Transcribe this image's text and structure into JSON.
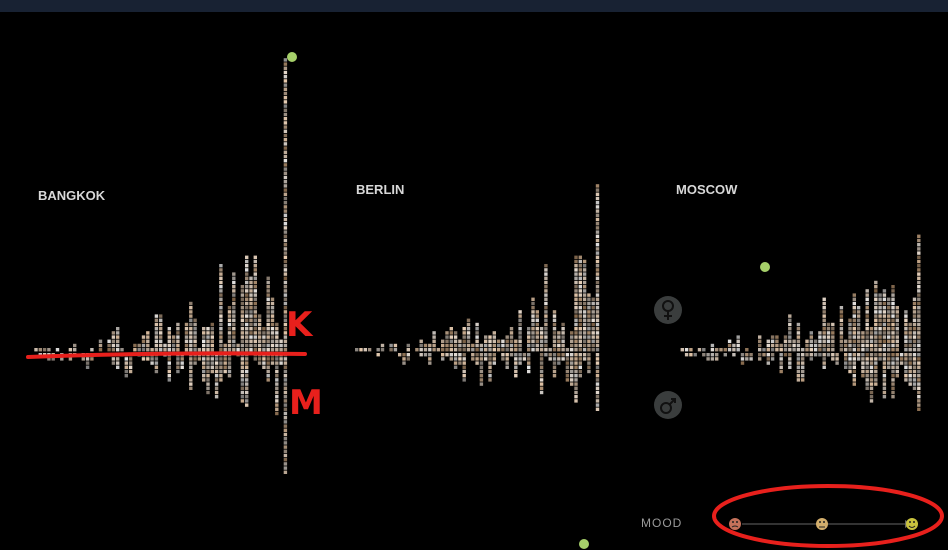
{
  "cities": [
    "BANGKOK",
    "BERLIN",
    "MOSCOW"
  ],
  "annotations": {
    "above_line": "K",
    "below_line": "M"
  },
  "mood": {
    "label": "MOOD"
  }
}
